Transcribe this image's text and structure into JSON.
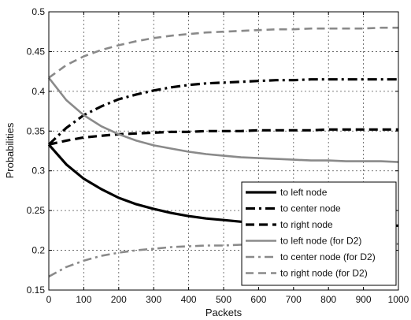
{
  "chart_data": {
    "type": "line",
    "xlabel": "Packets",
    "ylabel": "Probabilities",
    "xlim": [
      0,
      1000
    ],
    "ylim": [
      0.15,
      0.5
    ],
    "xticks": [
      "0",
      "100",
      "200",
      "300",
      "400",
      "500",
      "600",
      "700",
      "800",
      "900",
      "1000"
    ],
    "yticks": [
      "0.15",
      "0.2",
      "0.25",
      "0.3",
      "0.35",
      "0.4",
      "0.45",
      "0.5"
    ],
    "grid": true,
    "legend_position": "bottom-right",
    "x": [
      0,
      50,
      100,
      150,
      200,
      250,
      300,
      350,
      400,
      450,
      500,
      550,
      600,
      650,
      700,
      750,
      800,
      850,
      900,
      950,
      1000
    ],
    "series": [
      {
        "name": "to left node",
        "style": "solid-thick",
        "color": "#000000",
        "values": [
          0.333,
          0.308,
          0.29,
          0.277,
          0.266,
          0.258,
          0.252,
          0.247,
          0.243,
          0.24,
          0.238,
          0.236,
          0.234,
          0.233,
          0.232,
          0.232,
          0.231,
          0.231,
          0.231,
          0.231,
          0.231
        ]
      },
      {
        "name": "to center node",
        "style": "dashdot-thick",
        "color": "#000000",
        "values": [
          0.333,
          0.354,
          0.37,
          0.381,
          0.39,
          0.396,
          0.401,
          0.405,
          0.408,
          0.41,
          0.411,
          0.412,
          0.413,
          0.414,
          0.414,
          0.415,
          0.415,
          0.415,
          0.415,
          0.415,
          0.415
        ]
      },
      {
        "name": "to right node",
        "style": "dashed-thick",
        "color": "#000000",
        "values": [
          0.333,
          0.338,
          0.342,
          0.344,
          0.346,
          0.347,
          0.348,
          0.349,
          0.349,
          0.35,
          0.35,
          0.35,
          0.351,
          0.351,
          0.351,
          0.351,
          0.352,
          0.352,
          0.352,
          0.352,
          0.352
        ]
      },
      {
        "name": "to left node (for D2)",
        "style": "solid-gray",
        "color": "#8a8a8a",
        "values": [
          0.417,
          0.389,
          0.37,
          0.356,
          0.346,
          0.338,
          0.332,
          0.328,
          0.324,
          0.321,
          0.319,
          0.317,
          0.316,
          0.315,
          0.314,
          0.313,
          0.313,
          0.312,
          0.312,
          0.312,
          0.311
        ]
      },
      {
        "name": "to center node (for D2)",
        "style": "dashdot-gray",
        "color": "#8a8a8a",
        "values": [
          0.167,
          0.179,
          0.187,
          0.193,
          0.197,
          0.2,
          0.202,
          0.204,
          0.205,
          0.206,
          0.206,
          0.207,
          0.207,
          0.208,
          0.208,
          0.208,
          0.208,
          0.208,
          0.208,
          0.208,
          0.208
        ]
      },
      {
        "name": "to right node (for D2)",
        "style": "dashed-gray",
        "color": "#8a8a8a",
        "values": [
          0.417,
          0.433,
          0.444,
          0.452,
          0.458,
          0.463,
          0.467,
          0.47,
          0.472,
          0.474,
          0.475,
          0.476,
          0.477,
          0.478,
          0.478,
          0.479,
          0.479,
          0.479,
          0.479,
          0.48,
          0.48
        ]
      }
    ]
  }
}
